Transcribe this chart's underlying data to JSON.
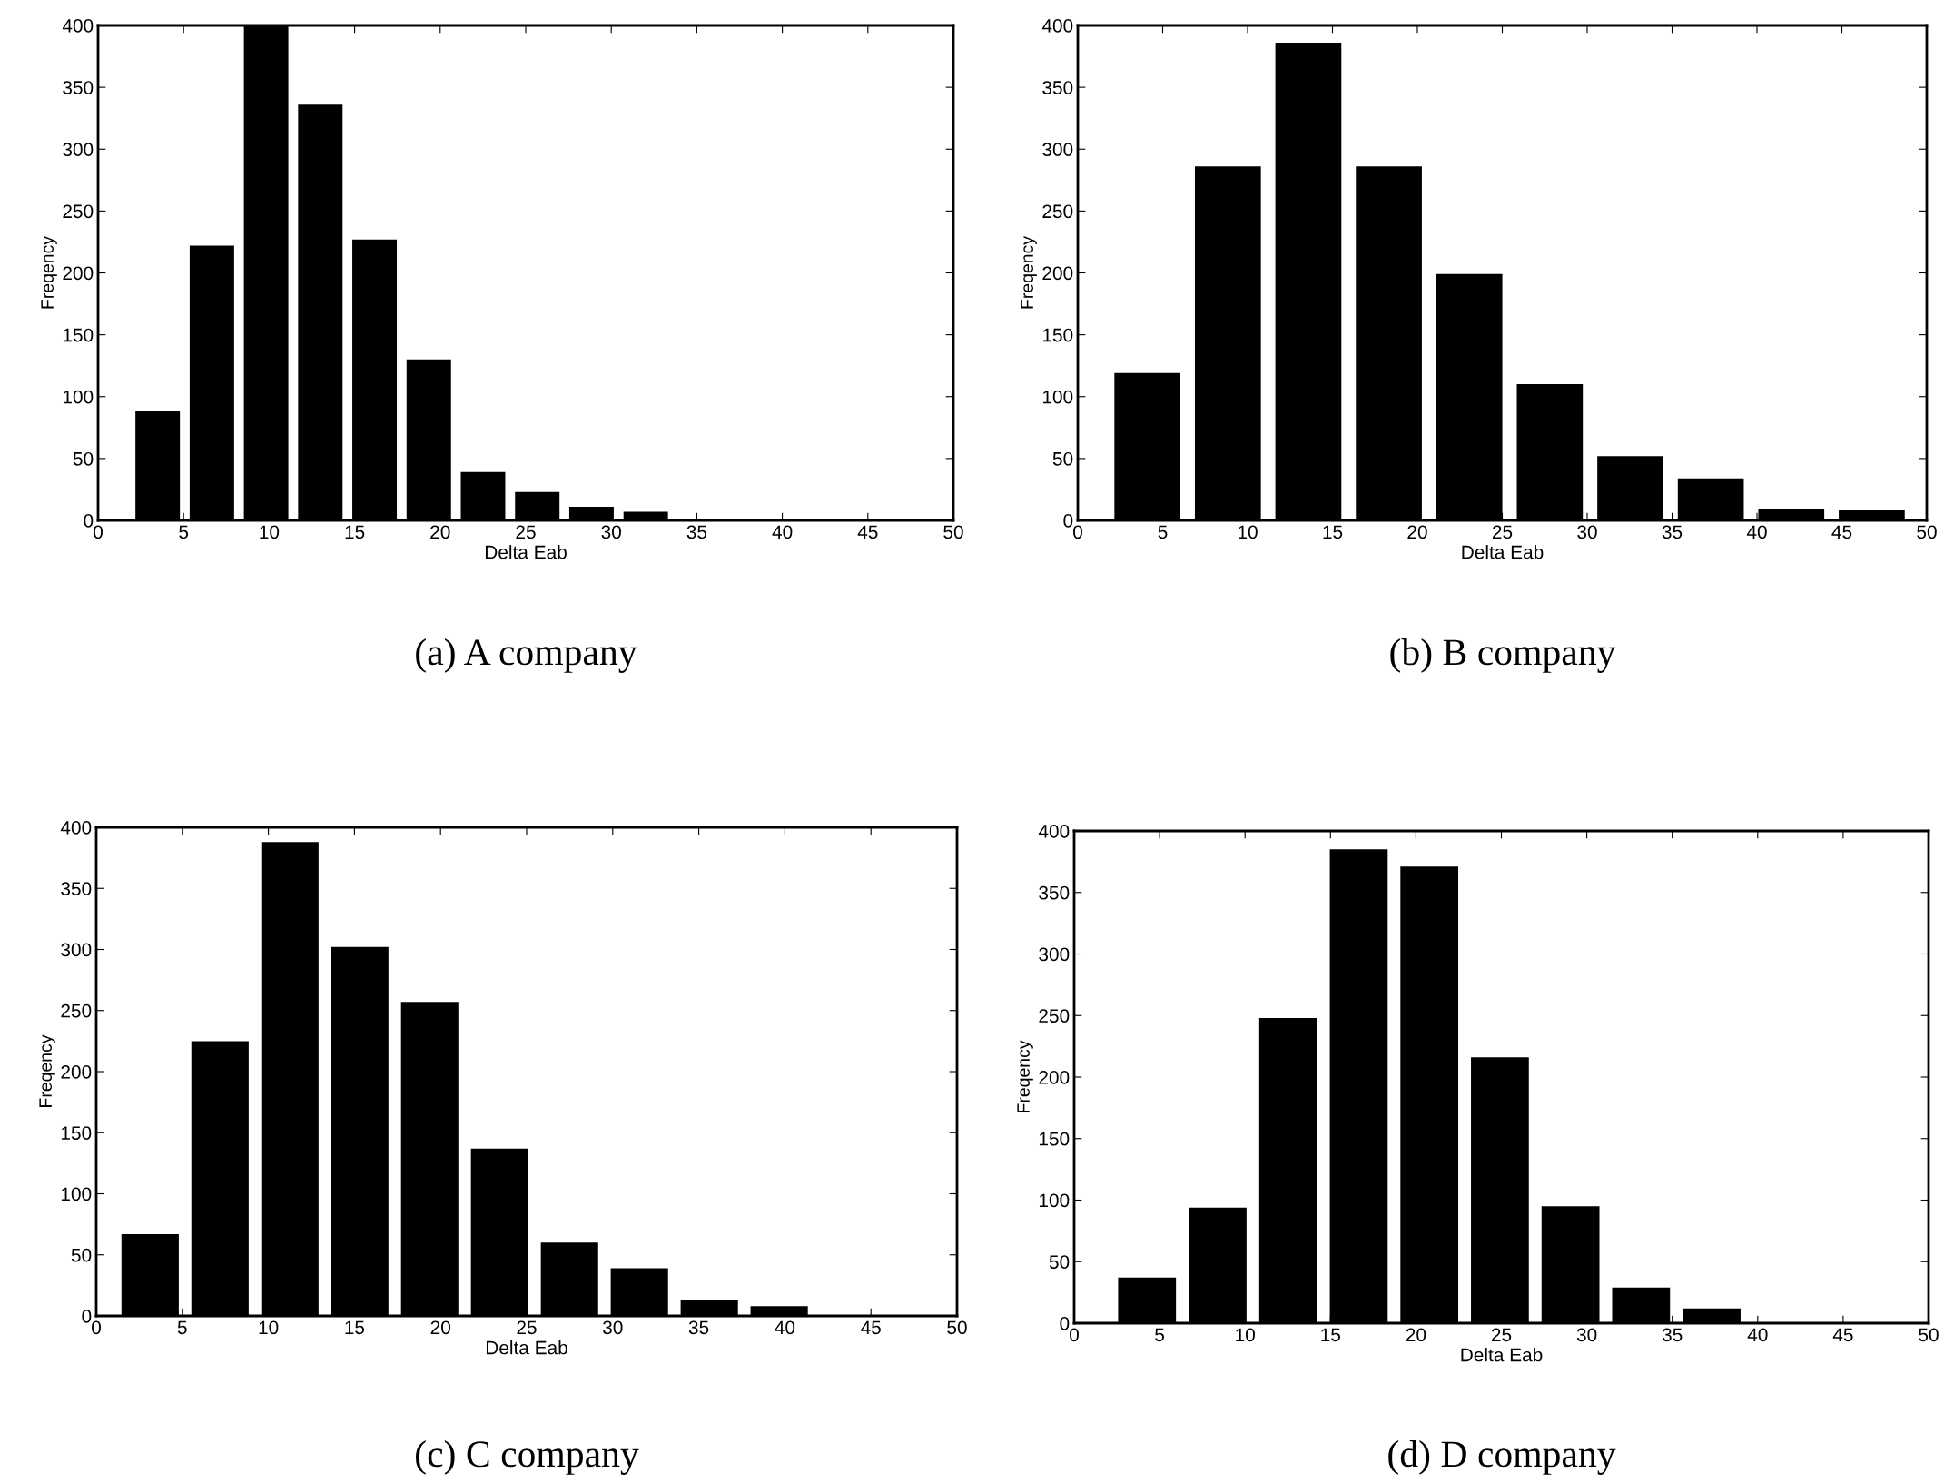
{
  "chart_data": [
    {
      "type": "histogram",
      "title": "(a) A company",
      "xlabel": "Delta Eab",
      "ylabel": "Freqency",
      "bins": [
        1.9,
        5.07,
        8.24,
        11.41,
        14.58,
        17.75,
        20.92,
        24.09,
        27.26,
        30.43,
        33.6
      ],
      "values": [
        88,
        222,
        400,
        336,
        227,
        130,
        39,
        23,
        11,
        7
      ],
      "color": "#000000",
      "xlim": [
        0,
        50
      ],
      "xticks": [
        0,
        5,
        10,
        15,
        20,
        25,
        30,
        35,
        40,
        45,
        50
      ],
      "ylim": [
        0,
        400
      ],
      "yticks": [
        0,
        50,
        100,
        150,
        200,
        250,
        300,
        350,
        400
      ],
      "grid": false
    },
    {
      "type": "histogram",
      "title": "(b) B company",
      "xlabel": "Delta Eab",
      "ylabel": "Freqency",
      "bins": [
        1.73,
        6.47,
        11.21,
        15.95,
        20.69,
        25.43,
        30.17,
        34.91,
        39.65,
        44.39,
        49.13
      ],
      "values": [
        119,
        286,
        386,
        286,
        199,
        110,
        52,
        34,
        9,
        8
      ],
      "color": "#000000",
      "xlim": [
        0,
        50
      ],
      "xticks": [
        0,
        5,
        10,
        15,
        20,
        25,
        30,
        35,
        40,
        45,
        50
      ],
      "ylim": [
        0,
        400
      ],
      "yticks": [
        0,
        50,
        100,
        150,
        200,
        250,
        300,
        350,
        400
      ],
      "grid": false
    },
    {
      "type": "histogram",
      "title": "(c) C company",
      "xlabel": "Delta Eab",
      "ylabel": "Freqency",
      "bins": [
        1.1,
        5.16,
        9.22,
        13.28,
        17.34,
        21.4,
        25.46,
        29.52,
        33.58,
        37.64,
        41.7
      ],
      "values": [
        67,
        225,
        388,
        302,
        257,
        137,
        60,
        39,
        13,
        8
      ],
      "color": "#000000",
      "xlim": [
        0,
        50
      ],
      "xticks": [
        0,
        5,
        10,
        15,
        20,
        25,
        30,
        35,
        40,
        45,
        50
      ],
      "ylim": [
        0,
        400
      ],
      "yticks": [
        0,
        50,
        100,
        150,
        200,
        250,
        300,
        350,
        400
      ],
      "grid": false
    },
    {
      "type": "histogram",
      "title": "(d) D company",
      "xlabel": "Delta Eab",
      "ylabel": "Freqency",
      "bins": [
        2.2,
        6.33,
        10.46,
        14.59,
        18.72,
        22.85,
        26.98,
        31.11,
        35.24,
        39.37
      ],
      "values": [
        37,
        94,
        248,
        385,
        371,
        216,
        95,
        29,
        12
      ],
      "color": "#000000",
      "xlim": [
        0,
        50
      ],
      "xticks": [
        0,
        5,
        10,
        15,
        20,
        25,
        30,
        35,
        40,
        45,
        50
      ],
      "ylim": [
        0,
        400
      ],
      "yticks": [
        0,
        50,
        100,
        150,
        200,
        250,
        300,
        350,
        400
      ],
      "grid": false
    }
  ]
}
